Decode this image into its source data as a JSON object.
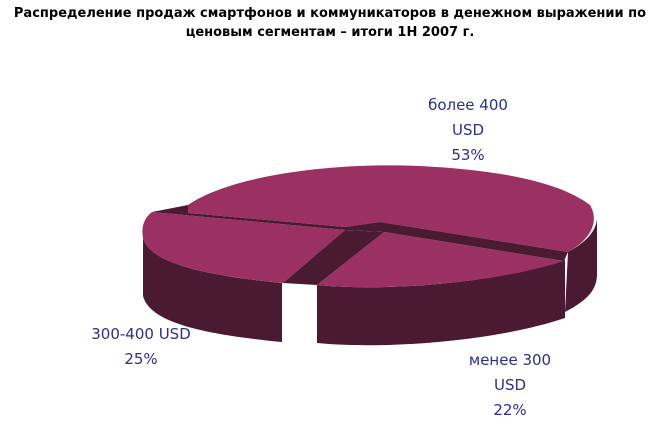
{
  "chart_data": {
    "type": "pie",
    "title_lines": [
      "Распределение продаж смартфонов и коммуникаторов в денежном выражении по",
      "ценовым сегментам – итоги 1H 2007 г."
    ],
    "slices": [
      {
        "label_lines": [
          "более 400",
          "USD"
        ],
        "value": 53,
        "value_label": "53%",
        "color": "#9b3063"
      },
      {
        "label_lines": [
          "менее 300",
          "USD"
        ],
        "value": 22,
        "value_label": "22%",
        "color": "#9b3063"
      },
      {
        "label_lines": [
          "300-400 USD"
        ],
        "value": 25,
        "value_label": "25%",
        "color": "#9b3063"
      }
    ],
    "label_color": "#2b2f8f",
    "side_color": "#4a1a33",
    "exploded": true,
    "three_d": true
  }
}
